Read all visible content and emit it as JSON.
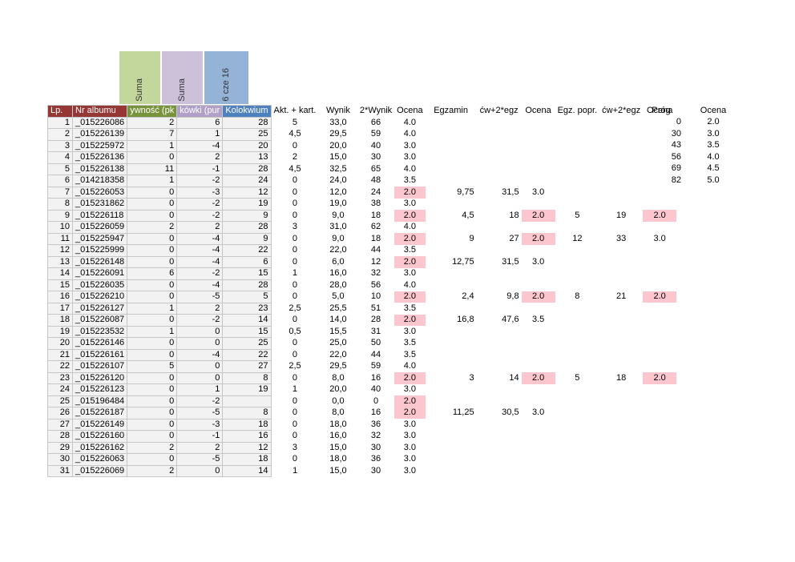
{
  "colors": {
    "header_dark_red": "#953735",
    "activity_green": "#77933C",
    "activity_green_light": "#C3D69B",
    "quiz_purple": "#B1A0C7",
    "quiz_purple_light": "#CCC1D9",
    "kolokwium_blue": "#4F81BD",
    "kolokwium_blue_light": "#95B3D7",
    "bad_pink": "#FCC6CE",
    "cell_gray": "#F2F2F2",
    "grid_line": "#C6C6C6"
  },
  "table": {
    "rotated_headers": [
      {
        "label": "Suma"
      },
      {
        "label": "Suma"
      },
      {
        "label": "6 cze 16"
      }
    ],
    "header": {
      "lp": "Lp.",
      "album": "Nr albumu",
      "activity": "ywność (pk",
      "quizzes": "kówki (pur",
      "kolokwium": "Kolokwium",
      "akt_kart": "Akt. + kart.",
      "wynik": "Wynik",
      "wynik2": "2*Wynik",
      "ocena1": "Ocena",
      "egzamin": "Egzamin",
      "cw2egz1": "ćw+2*egz",
      "ocena2": "Ocena",
      "egz_popr": "Egz. popr.",
      "cw2egz2": "ćw+2*egz",
      "ocena3": "Ocena"
    },
    "rows": [
      {
        "lp": "1",
        "album": "_015226086",
        "suma1": "2",
        "suma2": "6",
        "kolokwium": "28",
        "akt": "5",
        "wynik": "33,0",
        "wynik2": "66",
        "ocena1": "4.0"
      },
      {
        "lp": "2",
        "album": "_015226139",
        "suma1": "7",
        "suma2": "1",
        "kolokwium": "25",
        "akt": "4,5",
        "wynik": "29,5",
        "wynik2": "59",
        "ocena1": "4.0"
      },
      {
        "lp": "3",
        "album": "_015225972",
        "suma1": "1",
        "suma2": "-4",
        "kolokwium": "20",
        "akt": "0",
        "wynik": "20,0",
        "wynik2": "40",
        "ocena1": "3.0"
      },
      {
        "lp": "4",
        "album": "_015226136",
        "suma1": "0",
        "suma2": "2",
        "kolokwium": "13",
        "akt": "2",
        "wynik": "15,0",
        "wynik2": "30",
        "ocena1": "3.0"
      },
      {
        "lp": "5",
        "album": "_015226138",
        "suma1": "11",
        "suma2": "-1",
        "kolokwium": "28",
        "akt": "4,5",
        "wynik": "32,5",
        "wynik2": "65",
        "ocena1": "4.0"
      },
      {
        "lp": "6",
        "album": "_014218358",
        "suma1": "1",
        "suma2": "-2",
        "kolokwium": "24",
        "akt": "0",
        "wynik": "24,0",
        "wynik2": "48",
        "ocena1": "3.5"
      },
      {
        "lp": "7",
        "album": "_015226053",
        "suma1": "0",
        "suma2": "-3",
        "kolokwium": "12",
        "akt": "0",
        "wynik": "12,0",
        "wynik2": "24",
        "ocena1": "2.0",
        "ocena1_bad": true,
        "egzamin": "9,75",
        "cw1": "31,5",
        "ocena2": "3.0"
      },
      {
        "lp": "8",
        "album": "_015231862",
        "suma1": "0",
        "suma2": "-2",
        "kolokwium": "19",
        "akt": "0",
        "wynik": "19,0",
        "wynik2": "38",
        "ocena1": "3.0"
      },
      {
        "lp": "9",
        "album": "_015226118",
        "suma1": "0",
        "suma2": "-2",
        "kolokwium": "9",
        "akt": "0",
        "wynik": "9,0",
        "wynik2": "18",
        "ocena1": "2.0",
        "ocena1_bad": true,
        "egzamin": "4,5",
        "cw1": "18",
        "ocena2": "2.0",
        "ocena2_bad": true,
        "egzpopr": "5",
        "cw2": "19",
        "ocena3": "2.0",
        "ocena3_bad": true
      },
      {
        "lp": "10",
        "album": "_015226059",
        "suma1": "2",
        "suma2": "2",
        "kolokwium": "28",
        "akt": "3",
        "wynik": "31,0",
        "wynik2": "62",
        "ocena1": "4.0"
      },
      {
        "lp": "11",
        "album": "_015225947",
        "suma1": "0",
        "suma2": "-4",
        "kolokwium": "9",
        "akt": "0",
        "wynik": "9,0",
        "wynik2": "18",
        "ocena1": "2.0",
        "ocena1_bad": true,
        "egzamin": "9",
        "cw1": "27",
        "ocena2": "2.0",
        "ocena2_bad": true,
        "egzpopr": "12",
        "cw2": "33",
        "ocena3": "3.0"
      },
      {
        "lp": "12",
        "album": "_015225999",
        "suma1": "0",
        "suma2": "-4",
        "kolokwium": "22",
        "akt": "0",
        "wynik": "22,0",
        "wynik2": "44",
        "ocena1": "3.5"
      },
      {
        "lp": "13",
        "album": "_015226148",
        "suma1": "0",
        "suma2": "-4",
        "kolokwium": "6",
        "akt": "0",
        "wynik": "6,0",
        "wynik2": "12",
        "ocena1": "2.0",
        "ocena1_bad": true,
        "egzamin": "12,75",
        "cw1": "31,5",
        "ocena2": "3.0"
      },
      {
        "lp": "14",
        "album": "_015226091",
        "suma1": "6",
        "suma2": "-2",
        "kolokwium": "15",
        "akt": "1",
        "wynik": "16,0",
        "wynik2": "32",
        "ocena1": "3.0"
      },
      {
        "lp": "15",
        "album": "_015226035",
        "suma1": "0",
        "suma2": "-4",
        "kolokwium": "28",
        "akt": "0",
        "wynik": "28,0",
        "wynik2": "56",
        "ocena1": "4.0"
      },
      {
        "lp": "16",
        "album": "_015226210",
        "suma1": "0",
        "suma2": "-5",
        "kolokwium": "5",
        "akt": "0",
        "wynik": "5,0",
        "wynik2": "10",
        "ocena1": "2.0",
        "ocena1_bad": true,
        "egzamin": "2,4",
        "cw1": "9,8",
        "ocena2": "2.0",
        "ocena2_bad": true,
        "egzpopr": "8",
        "cw2": "21",
        "ocena3": "2.0",
        "ocena3_bad": true
      },
      {
        "lp": "17",
        "album": "_015226127",
        "suma1": "1",
        "suma2": "2",
        "kolokwium": "23",
        "akt": "2,5",
        "wynik": "25,5",
        "wynik2": "51",
        "ocena1": "3.5"
      },
      {
        "lp": "18",
        "album": "_015226087",
        "suma1": "0",
        "suma2": "-2",
        "kolokwium": "14",
        "akt": "0",
        "wynik": "14,0",
        "wynik2": "28",
        "ocena1": "2.0",
        "ocena1_bad": true,
        "egzamin": "16,8",
        "cw1": "47,6",
        "ocena2": "3.5"
      },
      {
        "lp": "19",
        "album": "_015223532",
        "suma1": "1",
        "suma2": "0",
        "kolokwium": "15",
        "akt": "0,5",
        "wynik": "15,5",
        "wynik2": "31",
        "ocena1": "3.0"
      },
      {
        "lp": "20",
        "album": "_015226146",
        "suma1": "0",
        "suma2": "0",
        "kolokwium": "25",
        "akt": "0",
        "wynik": "25,0",
        "wynik2": "50",
        "ocena1": "3.5"
      },
      {
        "lp": "21",
        "album": "_015226161",
        "suma1": "0",
        "suma2": "-4",
        "kolokwium": "22",
        "akt": "0",
        "wynik": "22,0",
        "wynik2": "44",
        "ocena1": "3.5"
      },
      {
        "lp": "22",
        "album": "_015226107",
        "suma1": "5",
        "suma2": "0",
        "kolokwium": "27",
        "akt": "2,5",
        "wynik": "29,5",
        "wynik2": "59",
        "ocena1": "4.0"
      },
      {
        "lp": "23",
        "album": "_015226120",
        "suma1": "0",
        "suma2": "0",
        "kolokwium": "8",
        "akt": "0",
        "wynik": "8,0",
        "wynik2": "16",
        "ocena1": "2.0",
        "ocena1_bad": true,
        "egzamin": "3",
        "cw1": "14",
        "ocena2": "2.0",
        "ocena2_bad": true,
        "egzpopr": "5",
        "cw2": "18",
        "ocena3": "2.0",
        "ocena3_bad": true
      },
      {
        "lp": "24",
        "album": "_015226123",
        "suma1": "0",
        "suma2": "1",
        "kolokwium": "19",
        "akt": "1",
        "wynik": "20,0",
        "wynik2": "40",
        "ocena1": "3.0"
      },
      {
        "lp": "25",
        "album": "_015196484",
        "suma1": "0",
        "suma2": "-2",
        "kolokwium": "",
        "akt": "0",
        "wynik": "0,0",
        "wynik2": "0",
        "ocena1": "2.0",
        "ocena1_bad": true
      },
      {
        "lp": "26",
        "album": "_015226187",
        "suma1": "0",
        "suma2": "-5",
        "kolokwium": "8",
        "akt": "0",
        "wynik": "8,0",
        "wynik2": "16",
        "ocena1": "2.0",
        "ocena1_bad": true,
        "egzamin": "11,25",
        "cw1": "30,5",
        "ocena2": "3.0"
      },
      {
        "lp": "27",
        "album": "_015226149",
        "suma1": "0",
        "suma2": "-3",
        "kolokwium": "18",
        "akt": "0",
        "wynik": "18,0",
        "wynik2": "36",
        "ocena1": "3.0"
      },
      {
        "lp": "28",
        "album": "_015226160",
        "suma1": "0",
        "suma2": "-1",
        "kolokwium": "16",
        "akt": "0",
        "wynik": "16,0",
        "wynik2": "32",
        "ocena1": "3.0"
      },
      {
        "lp": "29",
        "album": "_015226162",
        "suma1": "2",
        "suma2": "2",
        "kolokwium": "12",
        "akt": "3",
        "wynik": "15,0",
        "wynik2": "30",
        "ocena1": "3.0"
      },
      {
        "lp": "30",
        "album": "_015226063",
        "suma1": "0",
        "suma2": "-5",
        "kolokwium": "18",
        "akt": "0",
        "wynik": "18,0",
        "wynik2": "36",
        "ocena1": "3.0"
      },
      {
        "lp": "31",
        "album": "_015226069",
        "suma1": "2",
        "suma2": "0",
        "kolokwium": "14",
        "akt": "1",
        "wynik": "15,0",
        "wynik2": "30",
        "ocena1": "3.0"
      }
    ]
  },
  "grades_scale": {
    "header": {
      "prog": "Próg",
      "ocena": "Ocena"
    },
    "rows": [
      {
        "prog": "0",
        "ocena": "2.0"
      },
      {
        "prog": "30",
        "ocena": "3.0"
      },
      {
        "prog": "43",
        "ocena": "3.5"
      },
      {
        "prog": "56",
        "ocena": "4.0"
      },
      {
        "prog": "69",
        "ocena": "4.5"
      },
      {
        "prog": "82",
        "ocena": "5.0"
      }
    ]
  }
}
